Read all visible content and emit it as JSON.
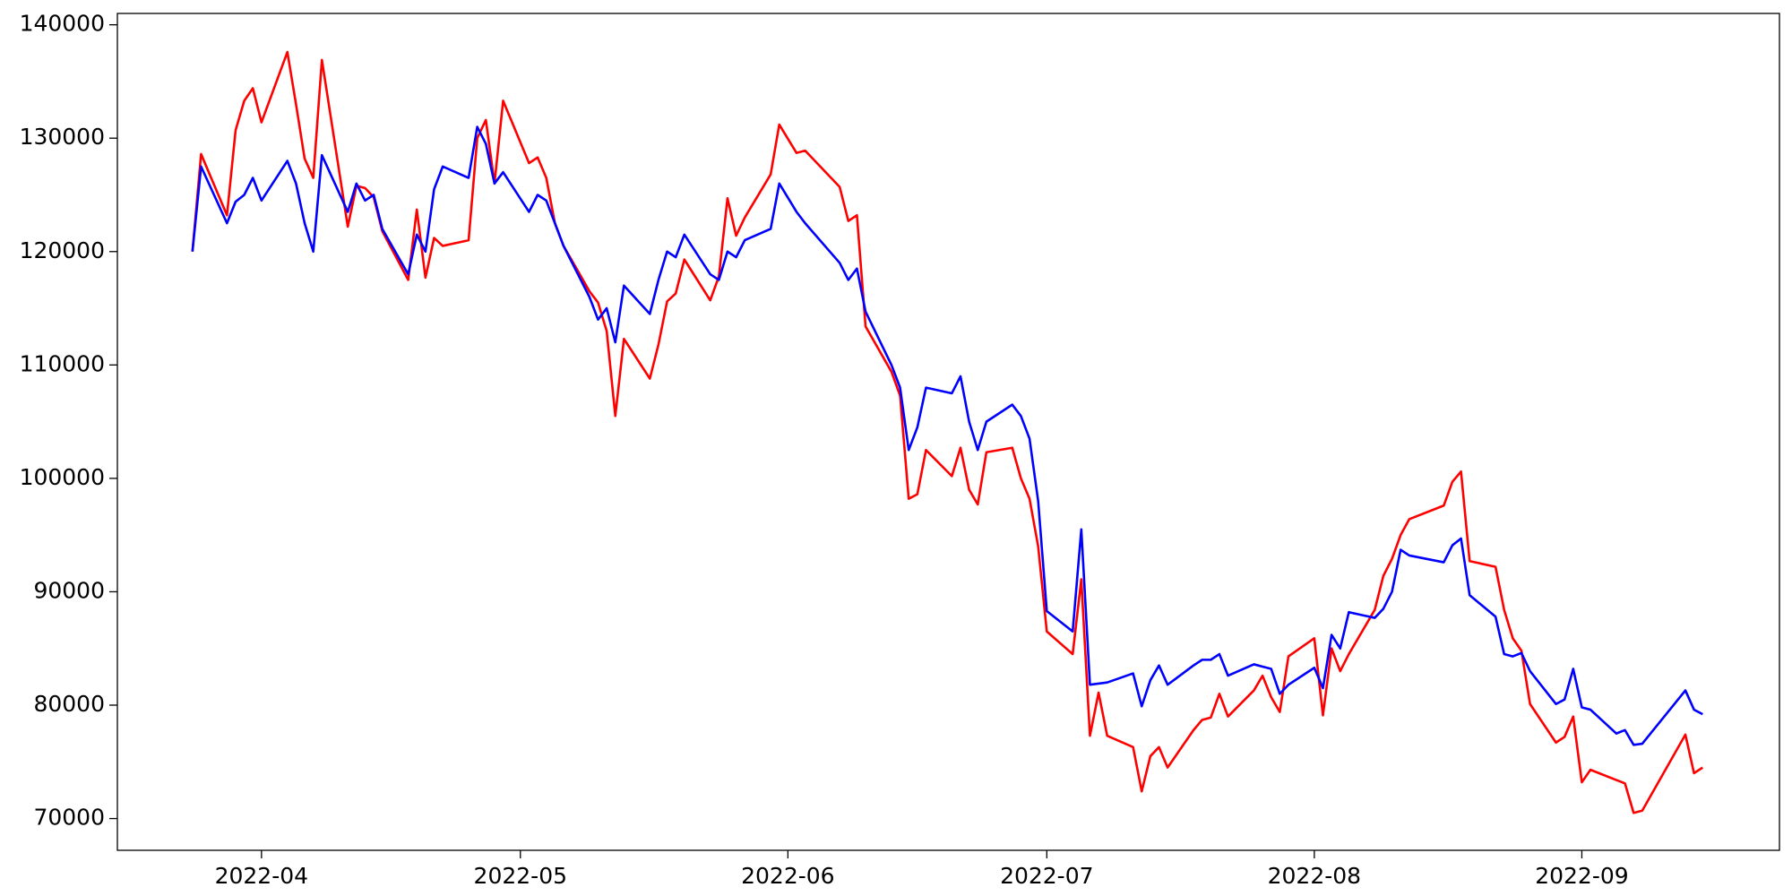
{
  "chart_data": {
    "type": "line",
    "x": [
      83,
      84,
      87,
      88,
      89,
      90,
      91,
      94,
      95,
      96,
      97,
      98,
      101,
      102,
      103,
      104,
      105,
      108,
      109,
      110,
      111,
      112,
      115,
      116,
      117,
      118,
      119,
      122,
      123,
      124,
      125,
      126,
      129,
      130,
      131,
      132,
      133,
      136,
      137,
      138,
      139,
      140,
      143,
      144,
      145,
      146,
      147,
      150,
      151,
      153,
      154,
      158,
      159,
      160,
      161,
      164,
      165,
      166,
      167,
      168,
      171,
      172,
      173,
      174,
      175,
      178,
      179,
      180,
      181,
      182,
      185,
      186,
      187,
      188,
      189,
      192,
      193,
      194,
      195,
      196,
      199,
      200,
      201,
      202,
      203,
      206,
      207,
      208,
      209,
      210,
      213,
      214,
      215,
      216,
      217,
      220,
      221,
      222,
      223,
      224,
      228,
      229,
      230,
      231,
      234,
      235,
      236,
      237,
      238,
      241,
      242,
      243,
      244,
      245,
      248,
      249,
      250,
      251,
      256,
      257,
      258
    ],
    "series": [
      {
        "color": "#ff0000",
        "values": [
          120000,
          128600,
          123200,
          130700,
          133300,
          134400,
          131400,
          137600,
          133000,
          128200,
          126500,
          136900,
          122200,
          125800,
          125600,
          124800,
          121800,
          117500,
          123700,
          117700,
          121200,
          120500,
          121000,
          130000,
          131600,
          126000,
          133300,
          127800,
          128300,
          126500,
          122500,
          120500,
          116500,
          115500,
          113000,
          105500,
          112300,
          108800,
          111800,
          115600,
          116300,
          119300,
          115700,
          117800,
          124700,
          121400,
          123000,
          126800,
          131200,
          128700,
          128900,
          125700,
          122700,
          123200,
          113400,
          109400,
          107300,
          98200,
          98600,
          102500,
          100200,
          102700,
          99000,
          97700,
          102300,
          102700,
          100000,
          98200,
          94000,
          86500,
          84500,
          91100,
          77300,
          81100,
          77300,
          76300,
          72400,
          75500,
          76300,
          74500,
          77800,
          78700,
          78900,
          81000,
          79000,
          81300,
          82600,
          80700,
          79400,
          84300,
          85900,
          79100,
          85000,
          83000,
          84500,
          88400,
          91400,
          92900,
          95000,
          96400,
          97600,
          99700,
          100600,
          92700,
          92200,
          88400,
          85900,
          84800,
          80100,
          76700,
          77200,
          79000,
          73200,
          74300,
          73400,
          73100,
          70500,
          70700,
          77400,
          74000,
          74500
        ]
      },
      {
        "color": "#0000ff",
        "values": [
          120000,
          127500,
          122500,
          124400,
          125000,
          126500,
          124500,
          128000,
          126000,
          122500,
          120000,
          128500,
          123500,
          126000,
          124500,
          125000,
          122000,
          118000,
          121500,
          120000,
          125500,
          127500,
          126500,
          131000,
          129500,
          126000,
          127000,
          123500,
          125000,
          124500,
          122500,
          120500,
          116000,
          114000,
          115000,
          112000,
          117000,
          114500,
          117500,
          120000,
          119500,
          121500,
          118000,
          117500,
          120000,
          119500,
          121000,
          122000,
          126000,
          123500,
          122500,
          119000,
          117500,
          118500,
          114700,
          110000,
          108000,
          102500,
          104500,
          108000,
          107500,
          109000,
          105000,
          102500,
          105000,
          106500,
          105500,
          103500,
          98000,
          88300,
          86500,
          95500,
          81800,
          81900,
          82000,
          82800,
          79900,
          82200,
          83500,
          81800,
          83500,
          84000,
          84000,
          84500,
          82600,
          83600,
          83400,
          83200,
          81000,
          81800,
          83300,
          81500,
          86200,
          85000,
          88200,
          87700,
          88500,
          90000,
          93700,
          93200,
          92600,
          94100,
          94700,
          89700,
          87800,
          84500,
          84300,
          84600,
          83000,
          80100,
          80500,
          83200,
          79800,
          79600,
          77500,
          77800,
          76500,
          76600,
          81300,
          79600,
          79200
        ]
      }
    ],
    "xlim": [
      74.3,
      266.9
    ],
    "xticks": [
      {
        "value": 91,
        "label": "2022-04"
      },
      {
        "value": 121,
        "label": "2022-05"
      },
      {
        "value": 152,
        "label": "2022-06"
      },
      {
        "value": 182,
        "label": "2022-07"
      },
      {
        "value": 213,
        "label": "2022-08"
      },
      {
        "value": 244,
        "label": "2022-09"
      }
    ],
    "ylim": [
      67200,
      141000
    ],
    "yticks": [
      70000,
      80000,
      90000,
      100000,
      110000,
      120000,
      130000,
      140000
    ],
    "grid": false
  }
}
